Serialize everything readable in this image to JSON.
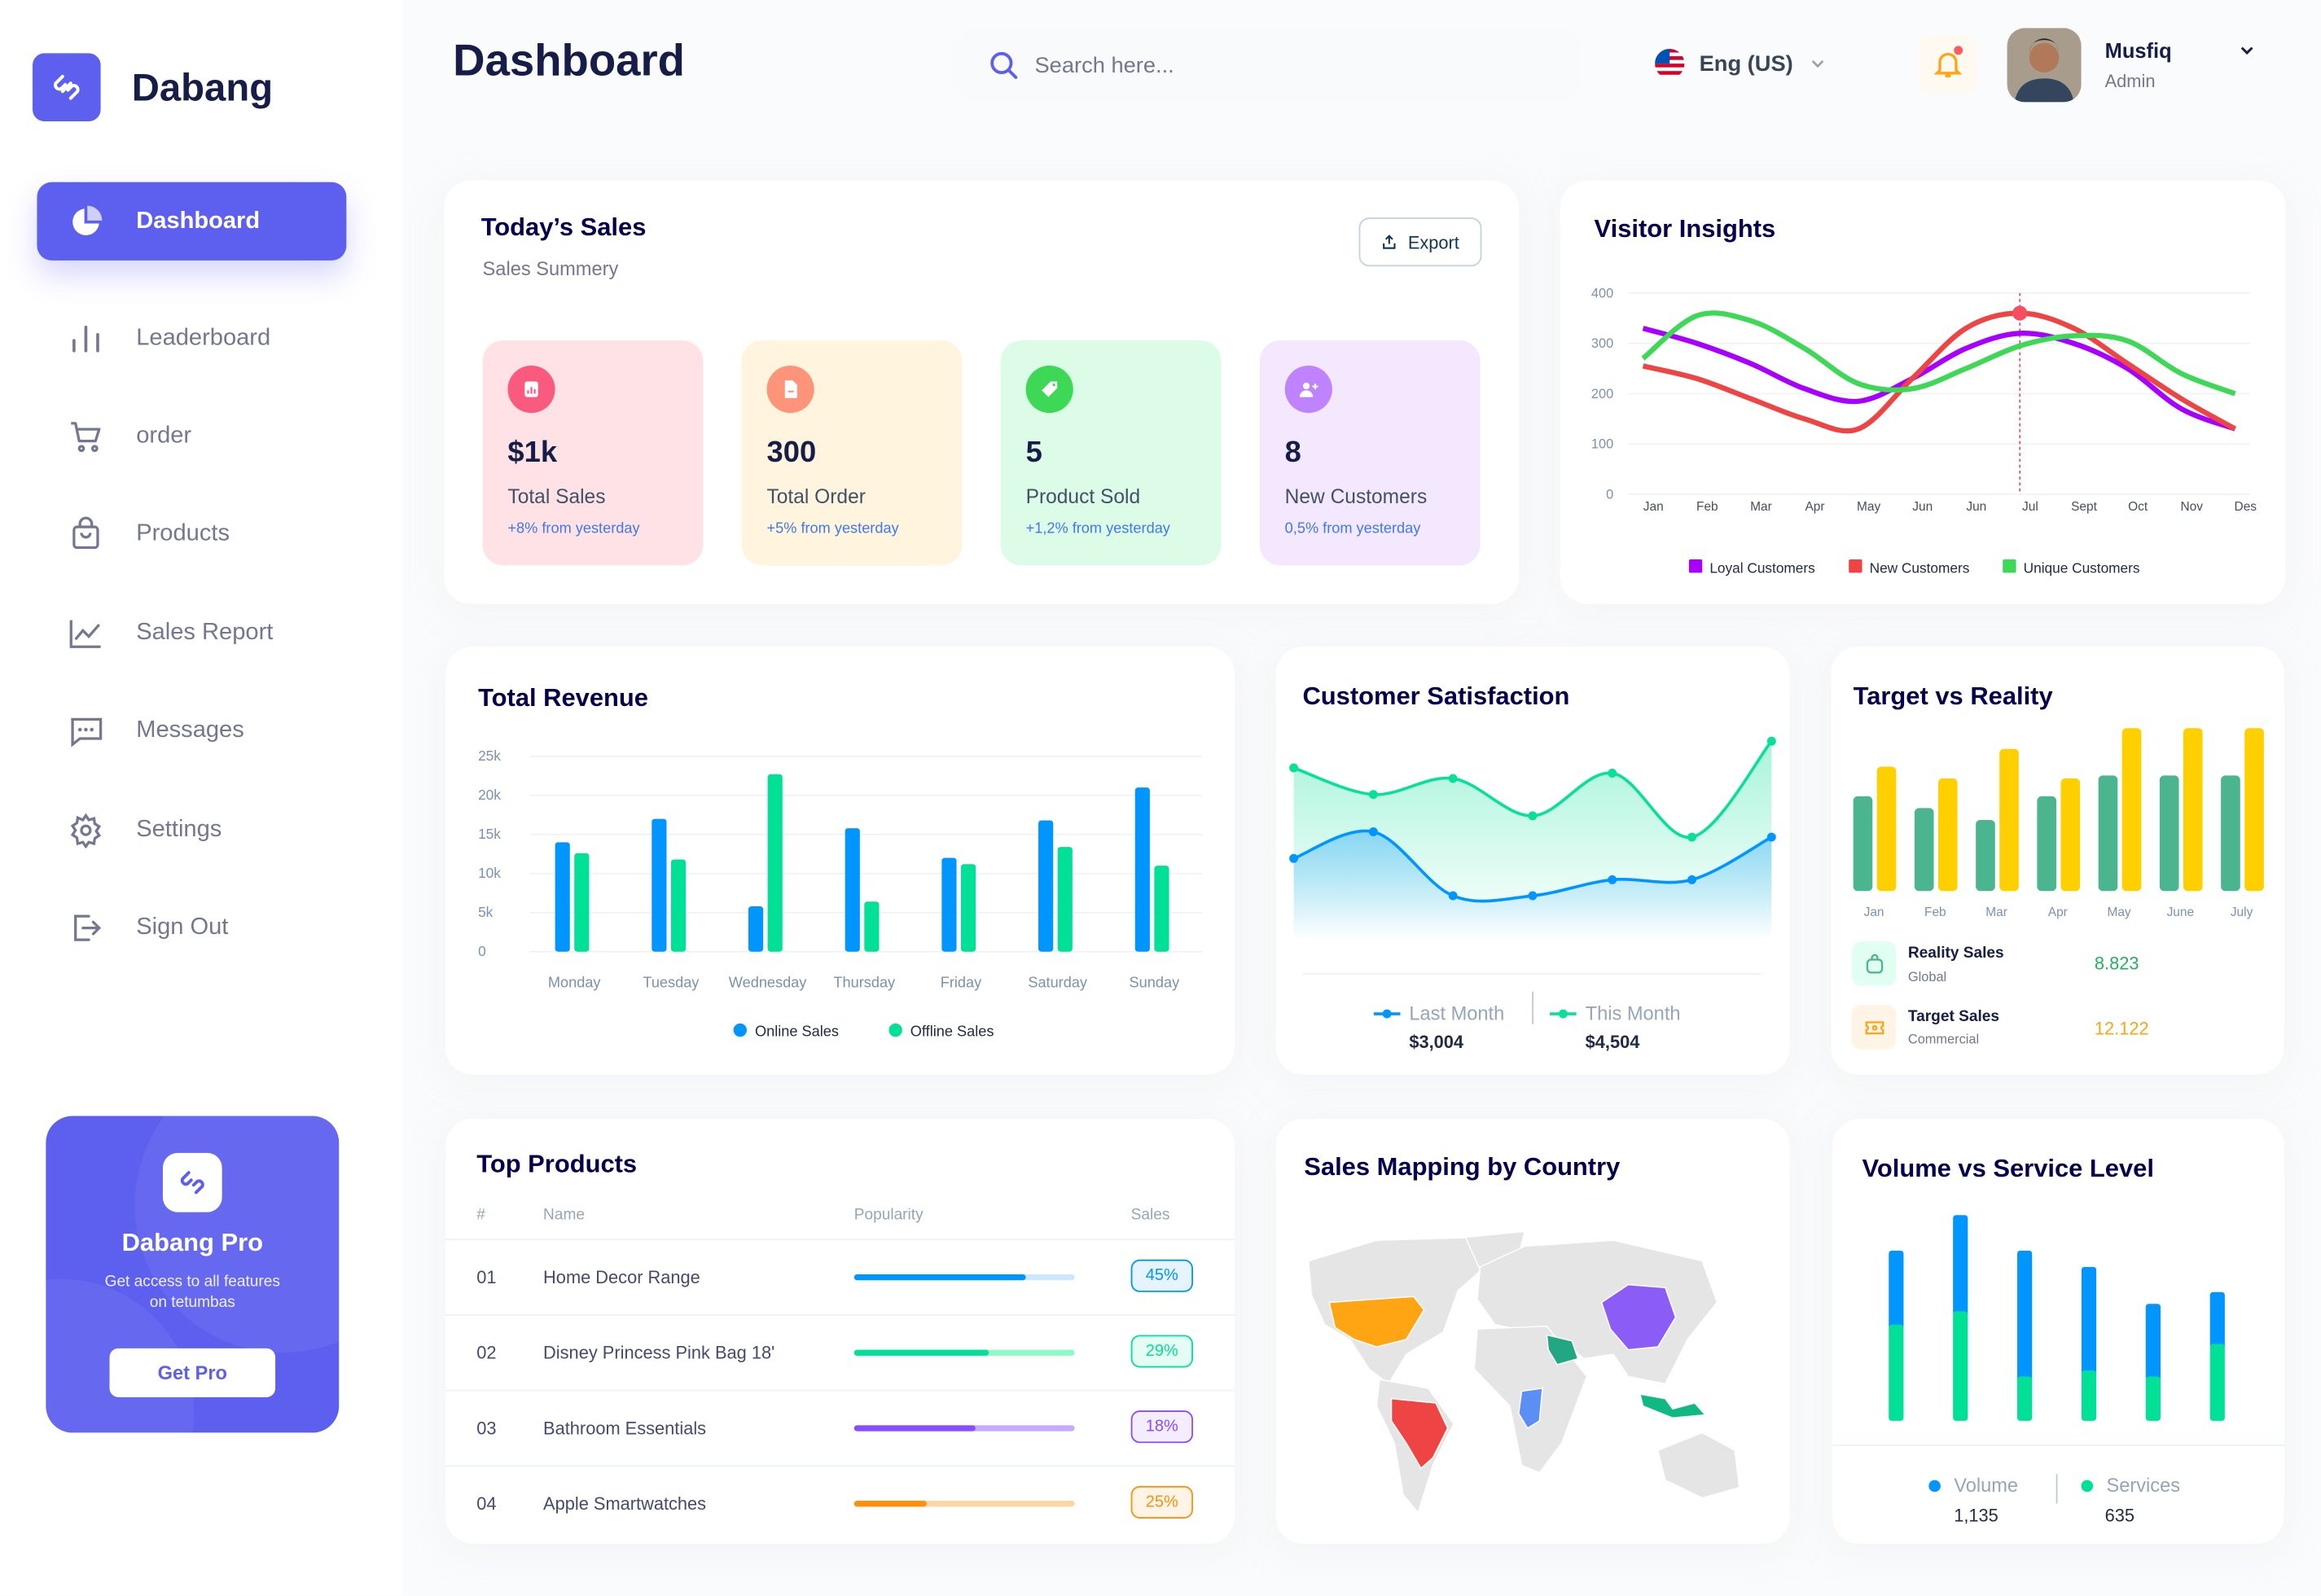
{
  "app": {
    "name": "Dabang"
  },
  "sidebar": {
    "items": [
      {
        "label": "Dashboard",
        "icon": "pie-chart-icon",
        "active": true
      },
      {
        "label": "Leaderboard",
        "icon": "bar-chart-icon"
      },
      {
        "label": "order",
        "icon": "cart-icon"
      },
      {
        "label": "Products",
        "icon": "shopping-bag-icon"
      },
      {
        "label": "Sales Report",
        "icon": "line-chart-icon"
      },
      {
        "label": "Messages",
        "icon": "message-icon"
      },
      {
        "label": "Settings",
        "icon": "gear-icon"
      },
      {
        "label": "Sign Out",
        "icon": "sign-out-icon"
      }
    ],
    "promo": {
      "title": "Dabang Pro",
      "text": "Get access to all features on tetumbas",
      "button": "Get Pro"
    }
  },
  "header": {
    "title": "Dashboard",
    "search_placeholder": "Search here...",
    "language": "Eng (US)",
    "user": {
      "name": "Musfiq",
      "role": "Admin"
    },
    "notification": true
  },
  "colors": {
    "accent": "#5d5fef",
    "navy": "#151d48"
  },
  "todays_sales": {
    "title": "Today’s Sales",
    "subtitle": "Sales Summery",
    "export": "Export",
    "stats": [
      {
        "value": "$1k",
        "label": "Total Sales",
        "delta": "+8% from yesterday",
        "bg": "#ffe2e5",
        "icon_bg": "#fa5a7d",
        "icon": "chart-icon"
      },
      {
        "value": "300",
        "label": "Total Order",
        "delta": "+5% from yesterday",
        "bg": "#fff4de",
        "icon_bg": "#ff947a",
        "icon": "document-icon"
      },
      {
        "value": "5",
        "label": "Product Sold",
        "delta": "+1,2% from yesterday",
        "bg": "#dcfce7",
        "icon_bg": "#3cd856",
        "icon": "tag-icon"
      },
      {
        "value": "8",
        "label": "New Customers",
        "delta": "0,5% from yesterday",
        "bg": "#f3e8ff",
        "icon_bg": "#bf83ff",
        "icon": "add-user-icon"
      }
    ]
  },
  "visitor_insights": {
    "title": "Visitor Insights"
  },
  "total_revenue": {
    "title": "Total Revenue"
  },
  "customer_satisfaction": {
    "title": "Customer Satisfaction",
    "legend": [
      {
        "label": "Last Month",
        "value": "$3,004"
      },
      {
        "label": "This Month",
        "value": "$4,504"
      }
    ]
  },
  "target_vs_reality": {
    "title": "Target vs Reality",
    "rows": [
      {
        "label": "Reality Sales",
        "sub": "Global",
        "value": "8.823",
        "icon": "shopping-bag-icon"
      },
      {
        "label": "Target Sales",
        "sub": "Commercial",
        "value": "12.122",
        "icon": "ticket-icon"
      }
    ]
  },
  "top_products": {
    "title": "Top Products",
    "columns": [
      "#",
      "Name",
      "Popularity",
      "Sales"
    ],
    "rows": [
      {
        "rank": "01",
        "name": "Home Decor Range",
        "popularity": 0.78,
        "sales": "45%",
        "color": "#0095ff",
        "track": "#cde7ff"
      },
      {
        "rank": "02",
        "name": "Disney Princess Pink Bag 18'",
        "popularity": 0.61,
        "sales": "29%",
        "color": "#00e096",
        "track": "#8cfac7"
      },
      {
        "rank": "03",
        "name": "Bathroom Essentials",
        "popularity": 0.55,
        "sales": "18%",
        "color": "#884dff",
        "track": "#c5a8ff"
      },
      {
        "rank": "04",
        "name": "Apple Smartwatches",
        "popularity": 0.33,
        "sales": "25%",
        "color": "#ff8f0d",
        "track": "#ffd5a4"
      }
    ]
  },
  "sales_mapping": {
    "title": "Sales Mapping by Country"
  },
  "volume_service": {
    "title": "Volume vs Service Level",
    "legend": [
      {
        "label": "Volume",
        "value": "1,135"
      },
      {
        "label": "Services",
        "value": "635"
      }
    ]
  },
  "chart_data": [
    {
      "id": "visitor",
      "type": "line",
      "categories": [
        "Jan",
        "Feb",
        "Mar",
        "Apr",
        "May",
        "Jun",
        "Jun",
        "Jul",
        "Sept",
        "Oct",
        "Nov",
        "Des"
      ],
      "yticks": [
        "0",
        "100",
        "200",
        "300",
        "400"
      ],
      "ylim": [
        0,
        400
      ],
      "grid": true,
      "legend": "bottom",
      "highlight": {
        "category_index": 7,
        "series": "New Customers"
      },
      "series": [
        {
          "name": "Loyal Customers",
          "color": "#a700ff",
          "values": [
            330,
            300,
            260,
            210,
            185,
            230,
            290,
            320,
            300,
            250,
            170,
            130
          ]
        },
        {
          "name": "New Customers",
          "color": "#ef4444",
          "values": [
            255,
            230,
            190,
            150,
            130,
            230,
            330,
            360,
            330,
            260,
            190,
            130
          ]
        },
        {
          "name": "Unique Customers",
          "color": "#3cd856",
          "values": [
            270,
            355,
            345,
            290,
            220,
            210,
            250,
            295,
            315,
            305,
            240,
            200
          ]
        }
      ]
    },
    {
      "id": "revenue",
      "type": "bar",
      "categories": [
        "Monday",
        "Tuesday",
        "Wednesday",
        "Thursday",
        "Friday",
        "Saturday",
        "Sunday"
      ],
      "yticks": [
        "0",
        "5k",
        "10k",
        "15k",
        "20k",
        "25k"
      ],
      "ylim": [
        0,
        25000
      ],
      "grid": true,
      "legend": "bottom",
      "series": [
        {
          "name": "Online Sales",
          "color": "#0095ff",
          "values": [
            14000,
            17000,
            5800,
            15800,
            12000,
            16800,
            21000
          ]
        },
        {
          "name": "Offline Sales",
          "color": "#00e096",
          "values": [
            12600,
            11800,
            22700,
            6400,
            11200,
            13400,
            11000
          ]
        }
      ]
    },
    {
      "id": "satisfaction",
      "type": "area",
      "series": [
        {
          "name": "Last Month",
          "color": "#0095ff",
          "values": [
            2.5,
            3.0,
            1.8,
            1.8,
            2.1,
            2.1,
            2.9
          ]
        },
        {
          "name": "This Month",
          "color": "#07e098",
          "values": [
            4.2,
            3.7,
            4.0,
            3.3,
            4.1,
            2.9,
            4.7
          ]
        }
      ]
    },
    {
      "id": "target",
      "type": "bar",
      "categories": [
        "Jan",
        "Feb",
        "Mar",
        "Apr",
        "May",
        "June",
        "July"
      ],
      "series": [
        {
          "name": "Reality Sales",
          "color": "#4ab58e",
          "values": [
            6.4,
            5.6,
            4.8,
            6.4,
            7.8,
            7.8,
            7.8
          ]
        },
        {
          "name": "Target Sales",
          "color": "#ffcf00",
          "values": [
            8.4,
            7.6,
            9.6,
            7.6,
            11,
            11,
            11
          ]
        }
      ]
    },
    {
      "id": "volume",
      "type": "bar",
      "stacked": true,
      "legend": "bottom",
      "series": [
        {
          "name": "Volume",
          "color": "#0095ff",
          "values": [
            50,
            65,
            85,
            70,
            49,
            35
          ]
        },
        {
          "name": "Services",
          "color": "#00e096",
          "values": [
            65,
            74,
            30,
            34,
            30,
            52
          ]
        }
      ]
    }
  ],
  "map": {
    "highlighted_regions": [
      {
        "region": "United States",
        "color": "#ffa412"
      },
      {
        "region": "Brazil",
        "color": "#ef4444"
      },
      {
        "region": "Saudi Arabia",
        "color": "#21a882"
      },
      {
        "region": "China",
        "color": "#8b5cf6"
      },
      {
        "region": "Indonesia",
        "color": "#10b981"
      },
      {
        "region": "Central Africa",
        "color": "#5c8ff6"
      }
    ]
  }
}
